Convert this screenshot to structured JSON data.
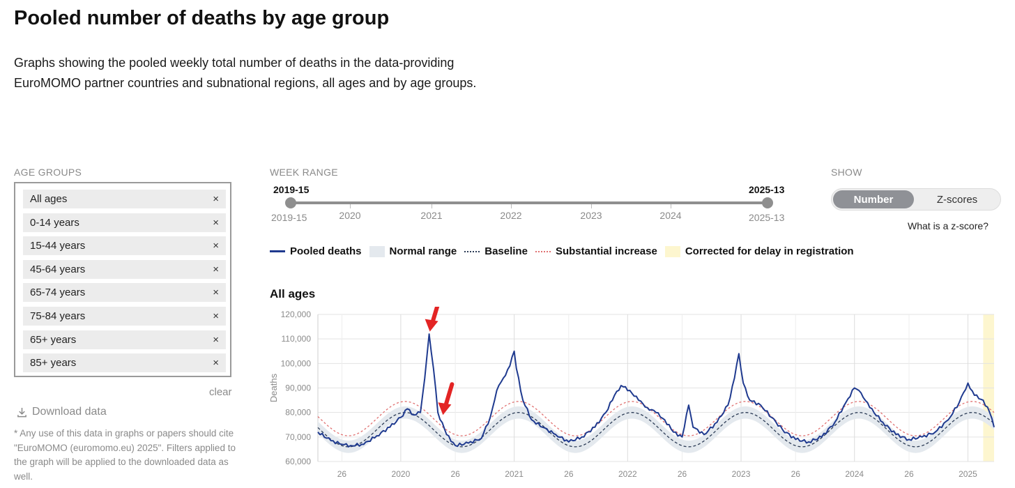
{
  "page": {
    "title": "Pooled number of deaths by age group",
    "description": "Graphs showing the pooled weekly total number of deaths in the data-providing EuroMOMO partner countries and subnational regions, all ages and by age groups."
  },
  "age_groups": {
    "label": "AGE GROUPS",
    "items": [
      "All ages",
      "0-14 years",
      "15-44 years",
      "45-64 years",
      "65-74 years",
      "75-84 years",
      "65+ years",
      "85+ years"
    ],
    "remove_glyph": "×",
    "clear_label": "clear"
  },
  "download": {
    "label": "Download data",
    "note": "* Any use of this data in graphs or papers should cite \"EuroMOMO (euromomo.eu) 2025\". Filters applied to the graph will be applied to the downloaded data as well."
  },
  "week_range": {
    "label": "WEEK RANGE",
    "start": "2019-15",
    "end": "2025-13",
    "year_marks": [
      "2020",
      "2021",
      "2022",
      "2023",
      "2024"
    ]
  },
  "show": {
    "label": "SHOW",
    "options": [
      "Number",
      "Z-scores"
    ],
    "selected": "Number",
    "help_link": "What is a z-score?"
  },
  "legend": {
    "items": [
      "Pooled deaths",
      "Normal range",
      "Baseline",
      "Substantial increase",
      "Corrected for delay in registration"
    ]
  },
  "colors": {
    "pooled": "#1f3a8f",
    "normal_range": "#e4e9ee",
    "baseline": "#2b3b55",
    "substantial": "#e07070",
    "delay": "#fdf6cf",
    "annotation": "#e32424"
  },
  "chart_data": {
    "type": "line",
    "title": "All ages",
    "ylabel": "Deaths",
    "ylim": [
      60000,
      120000
    ],
    "yticks": [
      60000,
      70000,
      80000,
      90000,
      100000,
      110000,
      120000
    ],
    "ytick_labels": [
      "60,000",
      "70,000",
      "80,000",
      "90,000",
      "100,000",
      "110,000",
      "120,000"
    ],
    "x_tick_labels": [
      "26",
      "2020",
      "26",
      "2021",
      "26",
      "2022",
      "26",
      "2023",
      "26",
      "2024",
      "26",
      "2025"
    ],
    "x_start_week": "2019-15",
    "x_end_week": "2025-13",
    "delay_corrected_range": [
      "2025-08",
      "2025-13"
    ],
    "annotations": [
      {
        "type": "arrow",
        "week": "2020-14",
        "value": 113000
      },
      {
        "type": "arrow",
        "week": "2020-20",
        "value": 79000
      }
    ],
    "series": [
      {
        "name": "Pooled deaths",
        "points": [
          [
            "2019-15",
            72000
          ],
          [
            "2019-21",
            68500
          ],
          [
            "2019-26",
            67000
          ],
          [
            "2019-30",
            66500
          ],
          [
            "2019-36",
            67000
          ],
          [
            "2019-42",
            70500
          ],
          [
            "2019-48",
            74000
          ],
          [
            "2020-01",
            78000
          ],
          [
            "2020-04",
            81500
          ],
          [
            "2020-07",
            79000
          ],
          [
            "2020-10",
            80000
          ],
          [
            "2020-12",
            94000
          ],
          [
            "2020-14",
            112000
          ],
          [
            "2020-16",
            98000
          ],
          [
            "2020-18",
            80000
          ],
          [
            "2020-22",
            71000
          ],
          [
            "2020-26",
            66500
          ],
          [
            "2020-32",
            67500
          ],
          [
            "2020-38",
            69500
          ],
          [
            "2020-42",
            78000
          ],
          [
            "2020-45",
            89000
          ],
          [
            "2020-48",
            94000
          ],
          [
            "2020-51",
            99000
          ],
          [
            "2020-53",
            105000
          ],
          [
            "2021-02",
            98000
          ],
          [
            "2021-05",
            85000
          ],
          [
            "2021-09",
            77000
          ],
          [
            "2021-14",
            74000
          ],
          [
            "2021-20",
            71000
          ],
          [
            "2021-26",
            68000
          ],
          [
            "2021-32",
            70000
          ],
          [
            "2021-38",
            74000
          ],
          [
            "2021-43",
            80000
          ],
          [
            "2021-47",
            87000
          ],
          [
            "2021-50",
            91000
          ],
          [
            "2022-02",
            89000
          ],
          [
            "2022-06",
            85000
          ],
          [
            "2022-10",
            82000
          ],
          [
            "2022-14",
            80000
          ],
          [
            "2022-18",
            77000
          ],
          [
            "2022-22",
            72000
          ],
          [
            "2022-26",
            70000
          ],
          [
            "2022-29",
            83000
          ],
          [
            "2022-31",
            74000
          ],
          [
            "2022-36",
            71000
          ],
          [
            "2022-42",
            76000
          ],
          [
            "2022-47",
            83000
          ],
          [
            "2022-50",
            94000
          ],
          [
            "2022-52",
            104000
          ],
          [
            "2023-02",
            92000
          ],
          [
            "2023-05",
            85000
          ],
          [
            "2023-10",
            83000
          ],
          [
            "2023-15",
            78000
          ],
          [
            "2023-20",
            73000
          ],
          [
            "2023-26",
            69000
          ],
          [
            "2023-32",
            68000
          ],
          [
            "2023-38",
            70000
          ],
          [
            "2023-44",
            76000
          ],
          [
            "2023-49",
            84000
          ],
          [
            "2024-01",
            90000
          ],
          [
            "2024-04",
            88000
          ],
          [
            "2024-08",
            82000
          ],
          [
            "2024-14",
            76000
          ],
          [
            "2024-20",
            71000
          ],
          [
            "2024-26",
            69000
          ],
          [
            "2024-32",
            70000
          ],
          [
            "2024-38",
            72000
          ],
          [
            "2024-44",
            77000
          ],
          [
            "2024-49",
            84000
          ],
          [
            "2025-01",
            92000
          ],
          [
            "2025-04",
            87000
          ],
          [
            "2025-08",
            85000
          ],
          [
            "2025-11",
            80000
          ],
          [
            "2025-13",
            74000
          ]
        ]
      }
    ],
    "baseline_model": {
      "baseline_mean": 73000,
      "baseline_amplitude": 7000,
      "peak_week": "mid-January",
      "normal_range_halfwidth": 2500,
      "substantial_increase_offset": 4500
    }
  }
}
